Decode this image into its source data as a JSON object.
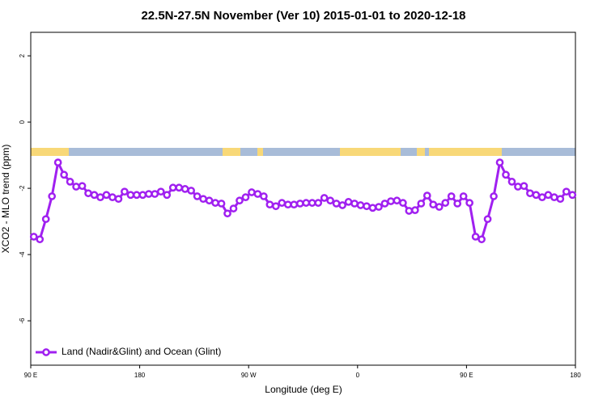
{
  "chart_data": {
    "type": "line",
    "title": "22.5N-27.5N November (Ver 10)   2015-01-01 to 2020-12-18",
    "x_label": "Longitude (deg E)",
    "y_label": "XCO2 - MLO trend (ppm)",
    "x": [
      92.5,
      97.5,
      102.5,
      107.5,
      112.5,
      117.5,
      122.5,
      127.5,
      132.5,
      137.5,
      142.5,
      147.5,
      152.5,
      157.5,
      162.5,
      167.5,
      172.5,
      177.5,
      182.5,
      187.5,
      192.5,
      197.5,
      202.5,
      207.5,
      212.5,
      217.5,
      222.5,
      227.5,
      232.5,
      237.5,
      242.5,
      247.5,
      252.5,
      257.5,
      262.5,
      267.5,
      272.5,
      277.5,
      282.5,
      287.5,
      292.5,
      297.5,
      302.5,
      307.5,
      312.5,
      317.5,
      322.5,
      327.5,
      332.5,
      337.5,
      342.5,
      347.5,
      352.5,
      357.5,
      362.5,
      367.5,
      372.5,
      377.5,
      382.5,
      387.5,
      392.5,
      397.5,
      402.5,
      407.5,
      412.5,
      417.5,
      422.5,
      427.5,
      432.5,
      437.5,
      442.5,
      447.5,
      452.5,
      457.5,
      462.5,
      467.5,
      472.5,
      477.5,
      482.5,
      487.5,
      492.5,
      497.5,
      502.5,
      507.5,
      512.5,
      517.5,
      522.5,
      527.5,
      532.5,
      537.5
    ],
    "series": [
      {
        "name": "Land (Nadir&Glint) and Ocean (Glint)",
        "color": "#a020f0",
        "values": [
          -3.46,
          -3.54,
          -2.93,
          -2.24,
          -1.22,
          -1.59,
          -1.8,
          -1.95,
          -1.93,
          -2.15,
          -2.2,
          -2.27,
          -2.2,
          -2.27,
          -2.32,
          -2.1,
          -2.2,
          -2.2,
          -2.2,
          -2.17,
          -2.17,
          -2.1,
          -2.2,
          -1.98,
          -1.98,
          -2.02,
          -2.07,
          -2.24,
          -2.32,
          -2.37,
          -2.44,
          -2.46,
          -2.76,
          -2.61,
          -2.37,
          -2.27,
          -2.12,
          -2.17,
          -2.24,
          -2.49,
          -2.54,
          -2.44,
          -2.49,
          -2.49,
          -2.46,
          -2.44,
          -2.44,
          -2.44,
          -2.29,
          -2.37,
          -2.46,
          -2.51,
          -2.41,
          -2.46,
          -2.51,
          -2.54,
          -2.59,
          -2.56,
          -2.46,
          -2.39,
          -2.37,
          -2.44,
          -2.68,
          -2.66,
          -2.46,
          -2.22,
          -2.49,
          -2.56,
          -2.44,
          -2.24,
          -2.46,
          -2.24,
          -2.44,
          -3.46,
          -3.54,
          -2.93,
          -2.24,
          -1.22,
          -1.59,
          -1.8,
          -1.95,
          -1.93,
          -2.15,
          -2.2,
          -2.27,
          -2.2,
          -2.27,
          -2.32,
          -2.1,
          -2.2
        ]
      }
    ],
    "xlim": [
      90,
      540
    ],
    "xticks": [
      {
        "value": 90,
        "label": "90 E"
      },
      180,
      {
        "value": 270,
        "label": "90 W"
      },
      {
        "value": 360,
        "label": "0"
      },
      {
        "value": 450,
        "label": "90 E"
      },
      {
        "value": 540,
        "label": "180"
      }
    ],
    "ylim": [
      -7.34,
      2.71
    ],
    "yticks": [
      2,
      0,
      -2,
      -4,
      -6
    ],
    "legend": "bottom-left"
  }
}
